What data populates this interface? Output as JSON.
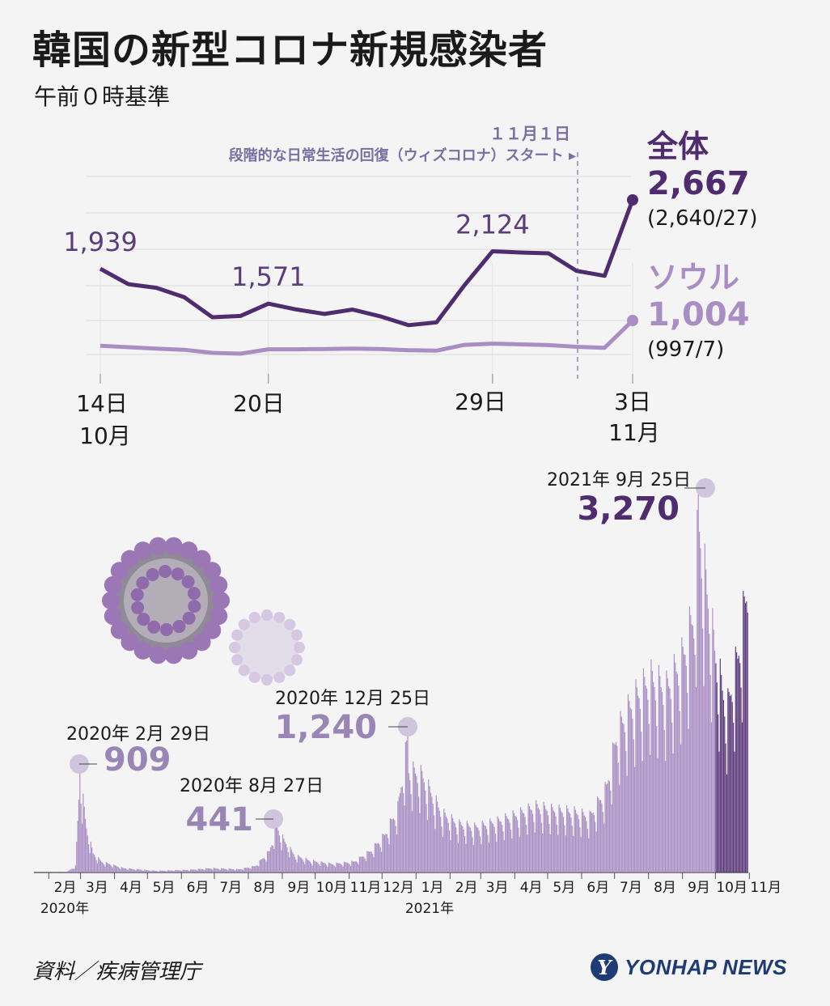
{
  "header": {
    "title": "韓国の新型コロナ新規感染者",
    "subtitle": "午前０時基準"
  },
  "colors": {
    "total_line": "#4e2c6e",
    "seoul_line": "#a98ec4",
    "bars": "#a88fc4",
    "bars_recent": "#5b3a7c",
    "peak_total": "#4e2c6e",
    "peak_secondary": "#9a86b4",
    "marker_circle": "#cfc5dd"
  },
  "chart_data": [
    {
      "type": "line",
      "x_ticks": [
        "14日",
        "20日",
        "29日",
        "3日"
      ],
      "x_month_labels": [
        "10月",
        "11月"
      ],
      "series": [
        {
          "name": "全体",
          "values": [
            1939,
            1777,
            1738,
            1638,
            1427,
            1441,
            1571,
            1509,
            1462,
            1508,
            1436,
            1343,
            1373,
            1766,
            2124,
            2111,
            2103,
            1917,
            1865,
            2667
          ],
          "annotations": [
            {
              "index": 0,
              "label": "1,939"
            },
            {
              "index": 6,
              "label": "1,571"
            },
            {
              "index": 14,
              "label": "2,124"
            }
          ],
          "end_value_label": "2,667",
          "end_detail": "(2,640/27)"
        },
        {
          "name": "ソウル",
          "values": [
            580,
            556,
            531,
            512,
            460,
            447,
            520,
            521,
            526,
            533,
            524,
            505,
            497,
            595,
            616,
            603,
            591,
            562,
            546,
            1004
          ],
          "end_value_label": "1,004",
          "end_detail": "(997/7)"
        }
      ],
      "event": {
        "date_label": "１１月１日",
        "label": "段階的な日常生活の回復（ウィズコロナ）スタート ▸"
      }
    },
    {
      "type": "bar",
      "x_month_labels": [
        "2月",
        "3月",
        "4月",
        "5月",
        "6月",
        "7月",
        "8月",
        "9月",
        "10月",
        "11月",
        "12月",
        "1月",
        "2月",
        "3月",
        "4月",
        "5月",
        "6月",
        "7月",
        "8月",
        "9月",
        "10月",
        "11月"
      ],
      "year_labels": [
        "2020年",
        "2021年"
      ],
      "peaks": [
        {
          "date": "2020年 2月 29日",
          "value": 909,
          "value_label": "909"
        },
        {
          "date": "2020年 8月 27日",
          "value": 441,
          "value_label": "441"
        },
        {
          "date": "2020年 12月 25日",
          "value": 1240,
          "value_label": "1,240"
        },
        {
          "date": "2021年 9月 25日",
          "value": 3270,
          "value_label": "3,270"
        }
      ],
      "ylim": [
        0,
        3270
      ]
    }
  ],
  "footer": {
    "source": "資料／疾病管理庁",
    "logo_mark": "Y",
    "logo_text": "YONHAP NEWS"
  }
}
